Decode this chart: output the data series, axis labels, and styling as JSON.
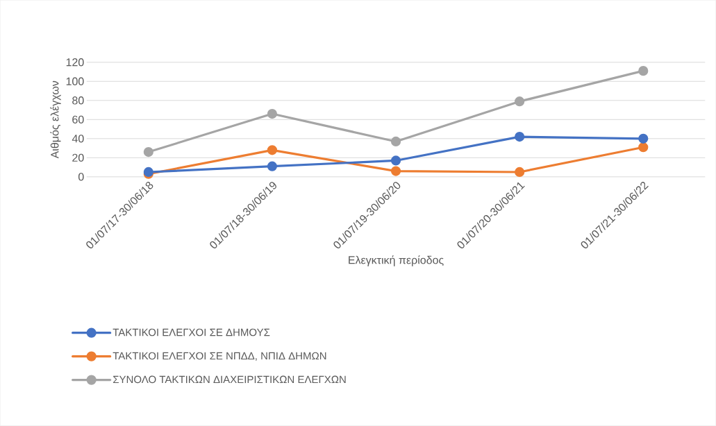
{
  "chart_data": {
    "type": "line",
    "xlabel": "Ελεγκτική περίοδος",
    "ylabel": "Αιθμός ελέγχων",
    "categories": [
      "01/07/17-30/06/18",
      "01/07/18-30/06/19",
      "01/07/19-30/06/20",
      "01/07/20-30/06/21",
      "01/07/21-30/06/22"
    ],
    "series": [
      {
        "name": "ΤΑΚΤΙΚΟΙ ΕΛΕΓΧΟΙ ΣΕ ΔΗΜΟΥΣ",
        "color": "#4472c4",
        "values": [
          5,
          11,
          17,
          42,
          40
        ]
      },
      {
        "name": "ΤΑΚΤΙΚΟΙ ΕΛΕΓΧΟΙ ΣΕ ΝΠΔΔ, ΝΠΙΔ ΔΗΜΩΝ",
        "color": "#ed7d31",
        "values": [
          3,
          28,
          6,
          5,
          31
        ]
      },
      {
        "name": "ΣΥΝΟΛΟ ΤΑΚΤΙΚΩΝ ΔΙΑΧΕΙΡΙΣΤΙΚΩΝ ΕΛΕΓΧΩΝ",
        "color": "#a5a5a5",
        "values": [
          26,
          66,
          37,
          79,
          111
        ]
      }
    ],
    "ylim": [
      0,
      120
    ],
    "yticks": [
      0,
      20,
      40,
      60,
      80,
      100,
      120
    ],
    "grid": "y",
    "legend": "bottom",
    "marker": "circle",
    "line_style": "solid"
  }
}
